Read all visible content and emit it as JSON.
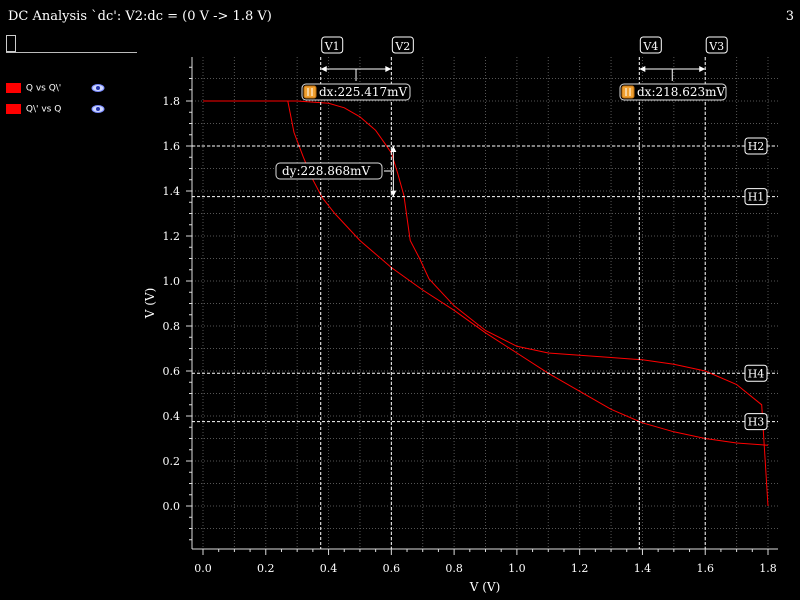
{
  "header": {
    "title": "DC Analysis `dc': V2:dc = (0 V -> 1.8 V)",
    "page_number": "3"
  },
  "legend": [
    {
      "label": "Q vs Q\\'",
      "color": "#ff0000",
      "icon": "eye-icon"
    },
    {
      "label": "Q\\' vs Q",
      "color": "#ff0000",
      "icon": "eye-icon"
    }
  ],
  "markers": {
    "vertical": [
      {
        "label": "V1",
        "x": 0.375
      },
      {
        "label": "V2",
        "x": 0.6
      },
      {
        "label": "V4",
        "x": 1.39
      },
      {
        "label": "V3",
        "x": 1.6
      }
    ],
    "horizontal": [
      {
        "label": "H2",
        "y": 1.6
      },
      {
        "label": "H1",
        "y": 1.375
      },
      {
        "label": "H4",
        "y": 0.59
      },
      {
        "label": "H3",
        "y": 0.375
      }
    ],
    "deltas": [
      {
        "text": "dx:225.417mV",
        "icon": "bookmark-icon"
      },
      {
        "text": "dx:218.623mV",
        "icon": "bookmark-icon"
      },
      {
        "text": "dy:228.868mV"
      }
    ]
  },
  "chart_data": {
    "type": "line",
    "xlabel": "V (V)",
    "ylabel": "V (V)",
    "xlim": [
      0,
      1.8
    ],
    "ylim": [
      -0.18,
      1.98
    ],
    "xticks": [
      "0.0",
      "0.2",
      "0.4",
      "0.6",
      "0.8",
      "1.0",
      "1.2",
      "1.4",
      "1.6",
      "1.8"
    ],
    "yticks": [
      "0.0",
      "0.2",
      "0.4",
      "0.6",
      "0.8",
      "1.0",
      "1.2",
      "1.4",
      "1.6",
      "1.8"
    ],
    "grid": true,
    "series": [
      {
        "name": "Q vs Q\\'",
        "color": "#ff0000",
        "x": [
          0,
          0.3,
          0.4,
          0.45,
          0.5,
          0.55,
          0.58,
          0.6,
          0.62,
          0.64,
          0.66,
          0.69,
          0.72,
          0.8,
          0.9,
          1.0,
          1.1,
          1.2,
          1.3,
          1.4,
          1.5,
          1.6,
          1.7,
          1.78,
          1.8
        ],
        "y": [
          1.8,
          1.8,
          1.79,
          1.77,
          1.73,
          1.67,
          1.61,
          1.57,
          1.48,
          1.38,
          1.18,
          1.1,
          1.01,
          0.89,
          0.78,
          0.71,
          0.68,
          0.67,
          0.66,
          0.65,
          0.63,
          0.6,
          0.54,
          0.45,
          0.0
        ]
      },
      {
        "name": "Q\\' vs Q",
        "color": "#ff0000",
        "x": [
          0.27,
          0.29,
          0.32,
          0.35,
          0.38,
          0.42,
          0.5,
          0.6,
          0.7,
          0.8,
          0.9,
          1.0,
          1.1,
          1.2,
          1.3,
          1.4,
          1.5,
          1.6,
          1.7,
          1.8
        ],
        "y": [
          1.8,
          1.66,
          1.55,
          1.45,
          1.37,
          1.3,
          1.18,
          1.06,
          0.96,
          0.87,
          0.77,
          0.68,
          0.59,
          0.51,
          0.43,
          0.37,
          0.33,
          0.3,
          0.28,
          0.27
        ]
      }
    ]
  }
}
